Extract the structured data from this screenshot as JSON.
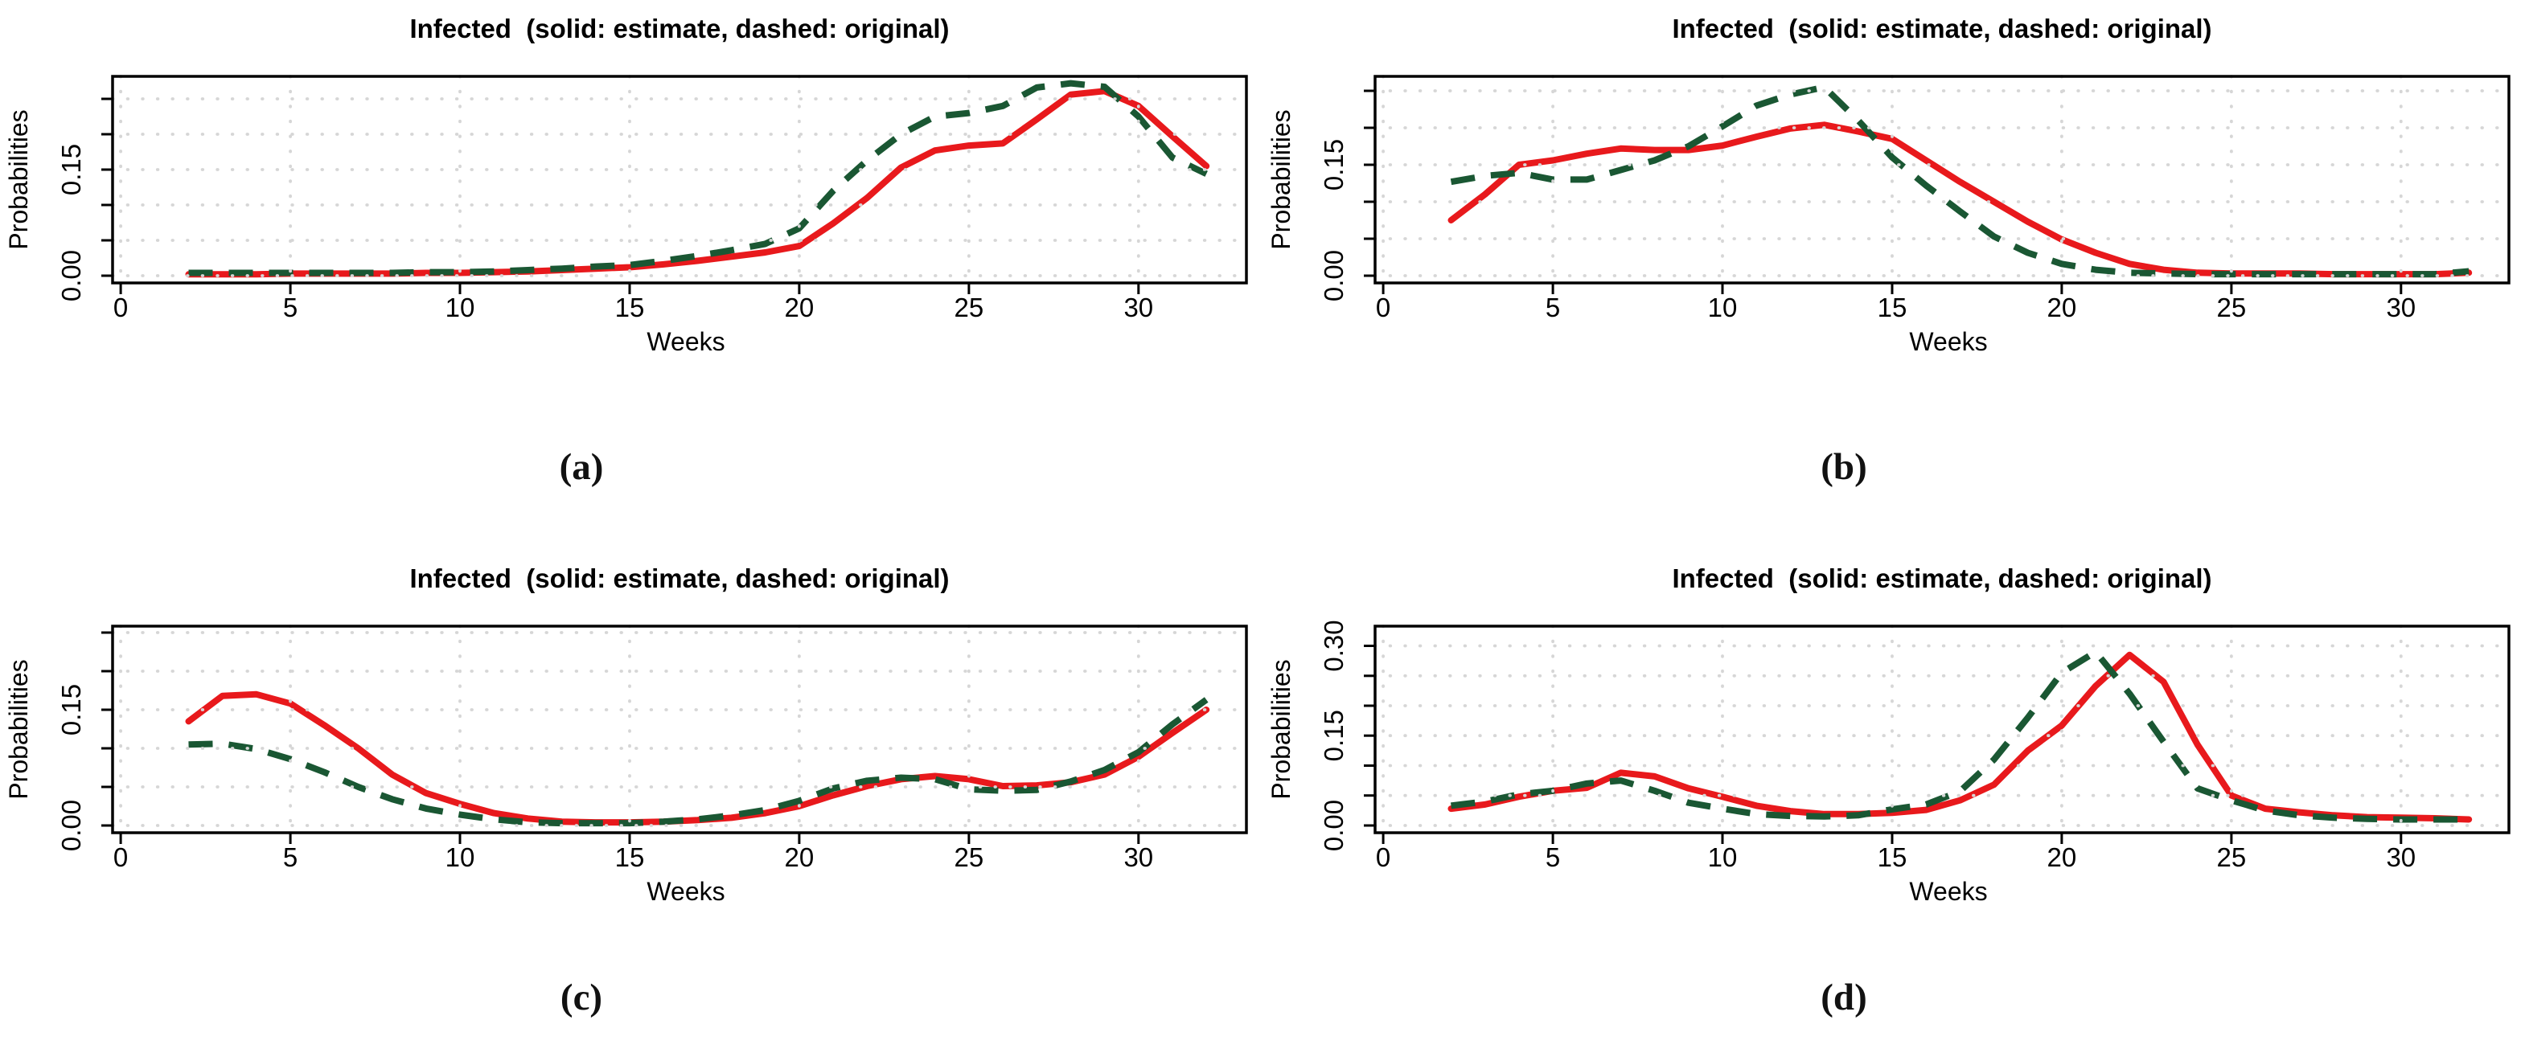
{
  "figure": {
    "background": "#ffffff",
    "colors": {
      "estimate_line": "#e8191c",
      "original_line": "#1a5733",
      "grid": "#d6d6d6",
      "axis": "#000000",
      "text": "#000000"
    }
  },
  "chart_data": [
    {
      "type": "line",
      "caption": "(a)",
      "title": "Infected  (solid: estimate, dashed: original)",
      "xlabel": "Weeks",
      "ylabel": "Probabilities",
      "x_ticks": [
        0,
        5,
        10,
        15,
        20,
        25,
        30
      ],
      "x_tick_labels": [
        "0",
        "5",
        "10",
        "15",
        "20",
        "25",
        "30"
      ],
      "xlim": [
        -0.24,
        33.18
      ],
      "ylim": [
        -0.0102,
        0.2818
      ],
      "y_ticks": [
        0,
        0.05,
        0.1,
        0.15,
        0.2,
        0.25
      ],
      "y_tick_labels": [
        {
          "value": 0,
          "label": "0.00"
        },
        {
          "value": 0.15,
          "label": "0.15"
        }
      ],
      "grid": "dotted",
      "legend": "solid red = estimate, dashed dark-green = original",
      "x": [
        2,
        3,
        4,
        5,
        6,
        7,
        8,
        9,
        10,
        11,
        12,
        13,
        14,
        15,
        16,
        17,
        18,
        19,
        20,
        21,
        22,
        23,
        24,
        25,
        26,
        27,
        28,
        29,
        30,
        31,
        32
      ],
      "series": [
        {
          "name": "estimate",
          "style": "solid",
          "values": [
            0.002,
            0.002,
            0.002,
            0.003,
            0.003,
            0.003,
            0.003,
            0.004,
            0.004,
            0.005,
            0.006,
            0.008,
            0.01,
            0.012,
            0.016,
            0.021,
            0.027,
            0.033,
            0.042,
            0.074,
            0.11,
            0.153,
            0.177,
            0.184,
            0.187,
            0.221,
            0.256,
            0.261,
            0.24,
            0.197,
            0.155
          ]
        },
        {
          "name": "original",
          "style": "dashed",
          "values": [
            0.004,
            0.004,
            0.004,
            0.004,
            0.004,
            0.004,
            0.004,
            0.005,
            0.005,
            0.006,
            0.008,
            0.01,
            0.013,
            0.015,
            0.021,
            0.028,
            0.036,
            0.045,
            0.067,
            0.12,
            0.163,
            0.2,
            0.225,
            0.23,
            0.24,
            0.266,
            0.272,
            0.267,
            0.225,
            0.167,
            0.144
          ]
        }
      ]
    },
    {
      "type": "line",
      "caption": "(b)",
      "title": "Infected  (solid: estimate, dashed: original)",
      "xlabel": "Weeks",
      "ylabel": "Probabilities",
      "x_ticks": [
        0,
        5,
        10,
        15,
        20,
        25,
        30
      ],
      "x_tick_labels": [
        "0",
        "5",
        "10",
        "15",
        "20",
        "25",
        "30"
      ],
      "xlim": [
        -0.24,
        33.18
      ],
      "ylim": [
        -0.0098,
        0.2696
      ],
      "y_ticks": [
        0,
        0.05,
        0.1,
        0.15,
        0.2,
        0.25
      ],
      "y_tick_labels": [
        {
          "value": 0,
          "label": "0.00"
        },
        {
          "value": 0.15,
          "label": "0.15"
        }
      ],
      "grid": "dotted",
      "legend": "solid red = estimate, dashed dark-green = original",
      "x": [
        2,
        3,
        4,
        5,
        6,
        7,
        8,
        9,
        10,
        11,
        12,
        13,
        14,
        15,
        16,
        17,
        18,
        19,
        20,
        21,
        22,
        23,
        24,
        25,
        26,
        27,
        28,
        29,
        30,
        31,
        32
      ],
      "series": [
        {
          "name": "estimate",
          "style": "solid",
          "values": [
            0.075,
            0.11,
            0.15,
            0.156,
            0.165,
            0.172,
            0.17,
            0.17,
            0.176,
            0.188,
            0.199,
            0.204,
            0.195,
            0.185,
            0.156,
            0.127,
            0.1,
            0.073,
            0.049,
            0.031,
            0.016,
            0.008,
            0.004,
            0.003,
            0.003,
            0.003,
            0.002,
            0.002,
            0.002,
            0.002,
            0.004
          ]
        },
        {
          "name": "original",
          "style": "dashed",
          "values": [
            0.127,
            0.135,
            0.139,
            0.13,
            0.13,
            0.143,
            0.156,
            0.175,
            0.202,
            0.23,
            0.245,
            0.255,
            0.21,
            0.16,
            0.122,
            0.087,
            0.053,
            0.031,
            0.016,
            0.008,
            0.004,
            0.003,
            0.002,
            0.002,
            0.002,
            0.002,
            0.002,
            0.002,
            0.002,
            0.002,
            0.006
          ]
        }
      ]
    },
    {
      "type": "line",
      "caption": "(c)",
      "title": "Infected  (solid: estimate, dashed: original)",
      "xlabel": "Weeks",
      "ylabel": "Probabilities",
      "x_ticks": [
        0,
        5,
        10,
        15,
        20,
        25,
        30
      ],
      "x_tick_labels": [
        "0",
        "5",
        "10",
        "15",
        "20",
        "25",
        "30"
      ],
      "xlim": [
        -0.24,
        33.18
      ],
      "ylim": [
        -0.0094,
        0.2583
      ],
      "y_ticks": [
        0,
        0.05,
        0.1,
        0.15,
        0.2,
        0.25
      ],
      "y_tick_labels": [
        {
          "value": 0,
          "label": "0.00"
        },
        {
          "value": 0.15,
          "label": "0.15"
        }
      ],
      "grid": "dotted",
      "legend": "solid red = estimate, dashed dark-green = original",
      "x": [
        2,
        3,
        4,
        5,
        6,
        7,
        8,
        9,
        10,
        11,
        12,
        13,
        14,
        15,
        16,
        17,
        18,
        19,
        20,
        21,
        22,
        23,
        24,
        25,
        26,
        27,
        28,
        29,
        30,
        31,
        32
      ],
      "series": [
        {
          "name": "estimate",
          "style": "solid",
          "values": [
            0.135,
            0.168,
            0.17,
            0.158,
            0.13,
            0.1,
            0.066,
            0.042,
            0.028,
            0.016,
            0.009,
            0.005,
            0.004,
            0.004,
            0.005,
            0.007,
            0.01,
            0.016,
            0.025,
            0.039,
            0.051,
            0.06,
            0.064,
            0.06,
            0.051,
            0.052,
            0.056,
            0.066,
            0.089,
            0.12,
            0.15
          ]
        },
        {
          "name": "original",
          "style": "dashed",
          "values": [
            0.105,
            0.106,
            0.099,
            0.086,
            0.069,
            0.05,
            0.034,
            0.022,
            0.014,
            0.008,
            0.004,
            0.003,
            0.003,
            0.003,
            0.005,
            0.008,
            0.013,
            0.02,
            0.032,
            0.048,
            0.058,
            0.062,
            0.06,
            0.047,
            0.045,
            0.046,
            0.057,
            0.072,
            0.095,
            0.131,
            0.163
          ]
        }
      ]
    },
    {
      "type": "line",
      "caption": "(d)",
      "title": "Infected  (solid: estimate, dashed: original)",
      "xlabel": "Weeks",
      "ylabel": "Probabilities",
      "x_ticks": [
        0,
        5,
        10,
        15,
        20,
        25,
        30
      ],
      "x_tick_labels": [
        "0",
        "5",
        "10",
        "15",
        "20",
        "25",
        "30"
      ],
      "xlim": [
        -0.24,
        33.18
      ],
      "ylim": [
        -0.0121,
        0.3329
      ],
      "y_ticks": [
        0,
        0.05,
        0.1,
        0.15,
        0.2,
        0.25,
        0.3
      ],
      "y_tick_labels": [
        {
          "value": 0,
          "label": "0.00"
        },
        {
          "value": 0.15,
          "label": "0.15"
        },
        {
          "value": 0.3,
          "label": "0.30"
        }
      ],
      "grid": "dotted",
      "legend": "solid red = estimate, dashed dark-green = original",
      "x": [
        2,
        3,
        4,
        5,
        6,
        7,
        8,
        9,
        10,
        11,
        12,
        13,
        14,
        15,
        16,
        17,
        18,
        19,
        20,
        21,
        22,
        23,
        24,
        25,
        26,
        27,
        28,
        29,
        30,
        31,
        32
      ],
      "series": [
        {
          "name": "estimate",
          "style": "solid",
          "values": [
            0.028,
            0.035,
            0.048,
            0.058,
            0.063,
            0.088,
            0.082,
            0.062,
            0.048,
            0.033,
            0.024,
            0.019,
            0.019,
            0.021,
            0.026,
            0.042,
            0.068,
            0.125,
            0.167,
            0.233,
            0.285,
            0.24,
            0.135,
            0.05,
            0.028,
            0.022,
            0.017,
            0.014,
            0.013,
            0.012,
            0.01
          ]
        },
        {
          "name": "original",
          "style": "dashed",
          "values": [
            0.033,
            0.04,
            0.052,
            0.058,
            0.07,
            0.075,
            0.058,
            0.038,
            0.028,
            0.019,
            0.016,
            0.015,
            0.017,
            0.027,
            0.035,
            0.057,
            0.11,
            0.18,
            0.255,
            0.29,
            0.22,
            0.14,
            0.062,
            0.042,
            0.025,
            0.017,
            0.013,
            0.011,
            0.01,
            0.01,
            0.01
          ]
        }
      ]
    }
  ]
}
